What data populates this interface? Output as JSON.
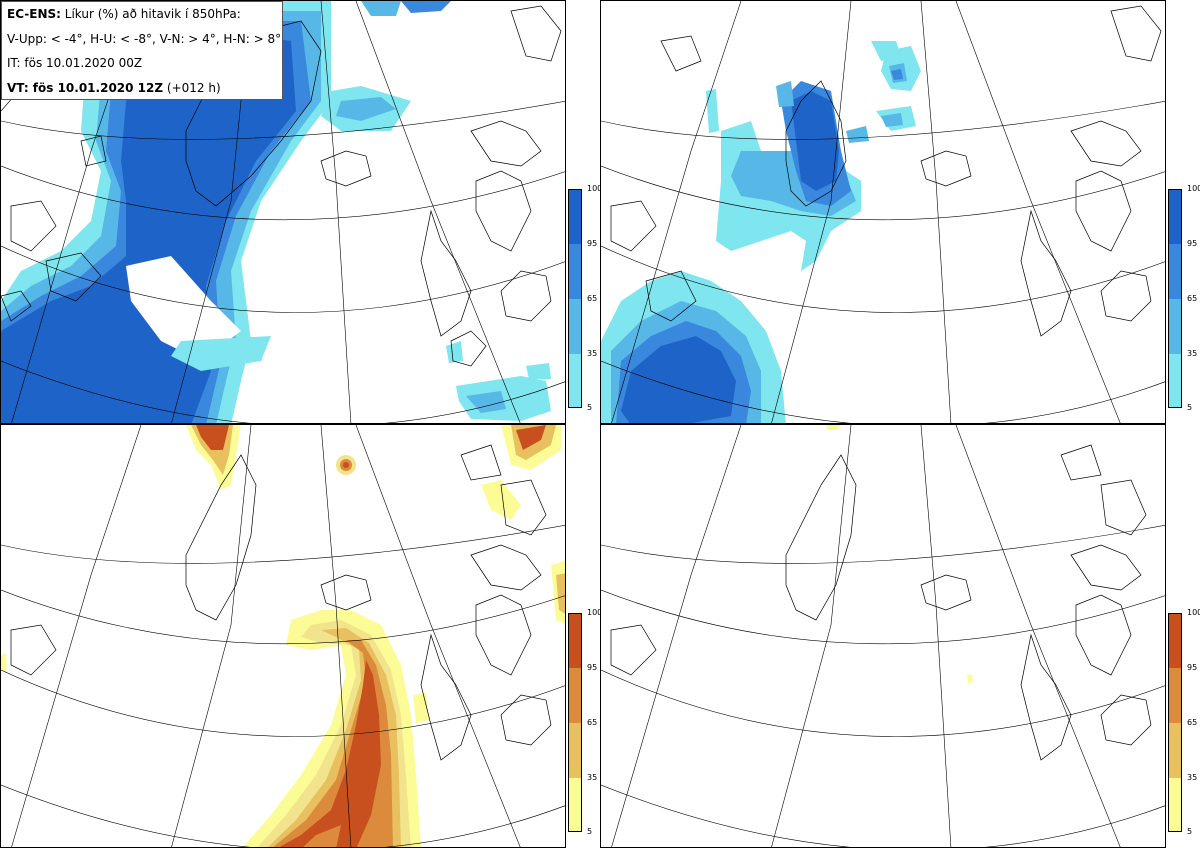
{
  "info": {
    "line1_bold": "EC-ENS:",
    "line1_rest": " Líkur (%) að hitavik í 850hPa:",
    "line2": "V-Upp: < -4°, H-U: < -8°, V-N: > 4°, H-N: > 8°",
    "line3": "IT: fös 10.01.2020 00Z",
    "line4_bold": "VT: fös 10.01.2020 12Z",
    "line4_rest": " (+012 h)"
  },
  "colorbars": {
    "ticks": [
      "100",
      "95",
      "65",
      "35",
      "5"
    ],
    "blue": [
      "#1e64c8",
      "#3a88dd",
      "#57b8e8",
      "#7fe5ee",
      "#aefcfc"
    ],
    "orange": [
      "#c8501e",
      "#dc8a3c",
      "#e8c060",
      "#f2e48c",
      "#fcfc96"
    ]
  },
  "panels": [
    {
      "name": "V-Upp",
      "scheme": "blue"
    },
    {
      "name": "H-U",
      "scheme": "blue"
    },
    {
      "name": "V-N",
      "scheme": "orange"
    },
    {
      "name": "H-N",
      "scheme": "orange"
    }
  ]
}
